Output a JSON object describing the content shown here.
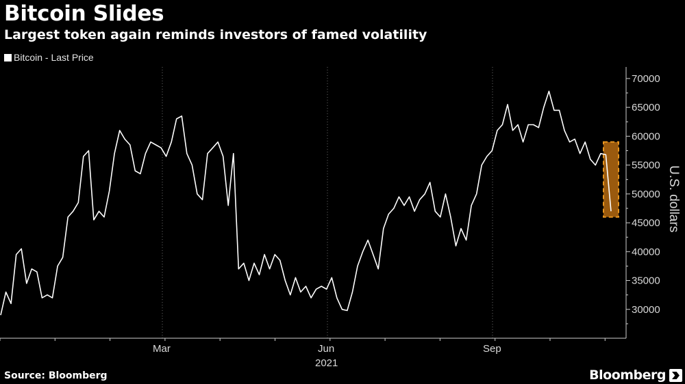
{
  "title": "Bitcoin Slides",
  "subtitle": "Largest token again reminds investors of famed volatility",
  "source": "Source: Bloomberg",
  "brand": "Bloomberg",
  "colors": {
    "line": "#ffffff",
    "highlight_fill": "#b56a10",
    "highlight_stroke": "#e8951e",
    "grid": "#6a6a6a"
  },
  "chart_data": {
    "type": "line",
    "title": "Bitcoin Slides",
    "legend": [
      "Bitcoin - Last Price"
    ],
    "legend_position": "top-left",
    "xlabel": "2021",
    "ylabel": "U.S. dollars",
    "y_axis_side": "right",
    "x_ticks": [
      "Mar",
      "Jun",
      "Sep"
    ],
    "y_ticks": [
      30000,
      35000,
      40000,
      45000,
      50000,
      55000,
      60000,
      65000,
      70000
    ],
    "ylim": [
      25000,
      72000
    ],
    "grid": true,
    "highlight": {
      "from_value": 46000,
      "to_value": 59000,
      "note": "recent decline highlighted"
    },
    "series": [
      {
        "name": "Bitcoin - Last Price",
        "values": [
          29000,
          33000,
          31000,
          39500,
          40500,
          34500,
          37000,
          36500,
          32000,
          32500,
          32000,
          37500,
          39000,
          46000,
          47000,
          48500,
          56500,
          57500,
          45500,
          47000,
          46000,
          50500,
          57000,
          61000,
          59500,
          58500,
          54000,
          53500,
          57000,
          59000,
          58500,
          58000,
          56500,
          59000,
          63000,
          63500,
          57000,
          55000,
          50000,
          49000,
          57000,
          58000,
          59000,
          56500,
          48000,
          57000,
          37000,
          38000,
          35000,
          38000,
          36000,
          39500,
          37000,
          39500,
          38500,
          35000,
          32500,
          35500,
          33000,
          34000,
          32000,
          33500,
          34000,
          33500,
          35500,
          32000,
          30000,
          29800,
          33000,
          37500,
          40000,
          42000,
          39500,
          37000,
          44000,
          46500,
          47500,
          49500,
          48000,
          49500,
          47000,
          49000,
          50000,
          52000,
          47000,
          46000,
          50000,
          46000,
          41000,
          44000,
          42000,
          48000,
          50000,
          55000,
          56500,
          57500,
          61000,
          62000,
          65500,
          61000,
          62000,
          59000,
          62000,
          62000,
          61500,
          65000,
          67800,
          64500,
          64500,
          61000,
          59000,
          59500,
          57000,
          59000,
          56000,
          55000,
          57000,
          56800,
          47000
        ]
      }
    ]
  }
}
